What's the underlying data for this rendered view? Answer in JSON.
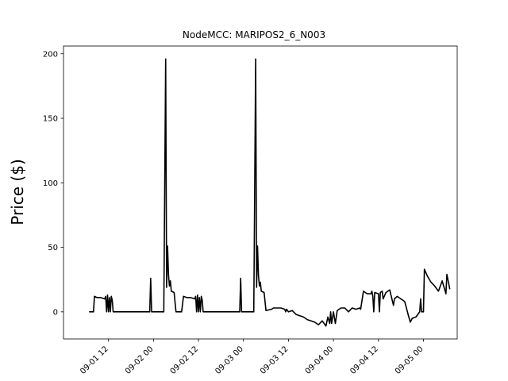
{
  "chart_data": {
    "type": "line",
    "title": "NodeMCC: MARIPOS2_6_N003",
    "xlabel": "",
    "ylabel": "Price ($)",
    "ylim": [
      -21,
      206
    ],
    "xlim": [
      "2022-09-01 00:00",
      "2022-09-05 09:00"
    ],
    "yticks": [
      0,
      50,
      100,
      150,
      200
    ],
    "xticks": [
      {
        "value": "2022-09-01 12:00",
        "label": "09-01 12"
      },
      {
        "value": "2022-09-02 00:00",
        "label": "09-02 00"
      },
      {
        "value": "2022-09-02 12:00",
        "label": "09-02 12"
      },
      {
        "value": "2022-09-03 00:00",
        "label": "09-03 00"
      },
      {
        "value": "2022-09-03 12:00",
        "label": "09-03 12"
      },
      {
        "value": "2022-09-04 00:00",
        "label": "09-04 00"
      },
      {
        "value": "2022-09-04 12:00",
        "label": "09-04 12"
      },
      {
        "value": "2022-09-05 00:00",
        "label": "09-05 00"
      }
    ],
    "grid": false,
    "line_color": "#000000",
    "series": [
      {
        "x": [
          "2022-09-01 07:00",
          "2022-09-01 08:00",
          "2022-09-01 08:15",
          "2022-09-01 09:00",
          "2022-09-01 10:00",
          "2022-09-01 11:00",
          "2022-09-01 11:15",
          "2022-09-01 11:30",
          "2022-09-01 11:45",
          "2022-09-01 12:00",
          "2022-09-01 12:15",
          "2022-09-01 12:30",
          "2022-09-01 12:45",
          "2022-09-01 13:00",
          "2022-09-01 13:15",
          "2022-09-01 14:00",
          "2022-09-01 16:00",
          "2022-09-01 20:00",
          "2022-09-01 23:00",
          "2022-09-01 23:15",
          "2022-09-01 23:30",
          "2022-09-02 01:00",
          "2022-09-02 02:45",
          "2022-09-02 03:15",
          "2022-09-02 03:30",
          "2022-09-02 03:45",
          "2022-09-02 04:00",
          "2022-09-02 04:15",
          "2022-09-02 04:30",
          "2022-09-02 04:45",
          "2022-09-02 05:30",
          "2022-09-02 06:00",
          "2022-09-02 07:30",
          "2022-09-02 08:00",
          "2022-09-02 09:00",
          "2022-09-02 10:00",
          "2022-09-02 11:00",
          "2022-09-02 11:15",
          "2022-09-02 11:30",
          "2022-09-02 11:45",
          "2022-09-02 12:00",
          "2022-09-02 12:15",
          "2022-09-02 12:30",
          "2022-09-02 12:45",
          "2022-09-02 13:00",
          "2022-09-02 13:15",
          "2022-09-02 14:00",
          "2022-09-02 16:00",
          "2022-09-02 20:00",
          "2022-09-02 23:00",
          "2022-09-02 23:15",
          "2022-09-02 23:30",
          "2022-09-03 01:00",
          "2022-09-03 02:45",
          "2022-09-03 03:15",
          "2022-09-03 03:30",
          "2022-09-03 03:45",
          "2022-09-03 04:00",
          "2022-09-03 04:15",
          "2022-09-03 04:30",
          "2022-09-03 04:45",
          "2022-09-03 05:30",
          "2022-09-03 06:00",
          "2022-09-03 07:30",
          "2022-09-03 08:00",
          "2022-09-03 10:00",
          "2022-09-03 11:00",
          "2022-09-03 11:15",
          "2022-09-03 11:30",
          "2022-09-03 12:00",
          "2022-09-03 13:00",
          "2022-09-03 14:00",
          "2022-09-03 15:00",
          "2022-09-03 16:00",
          "2022-09-03 17:00",
          "2022-09-03 18:00",
          "2022-09-03 19:00",
          "2022-09-03 20:00",
          "2022-09-03 21:00",
          "2022-09-03 22:00",
          "2022-09-03 22:30",
          "2022-09-03 23:00",
          "2022-09-03 23:15",
          "2022-09-03 23:30",
          "2022-09-04 00:00",
          "2022-09-04 00:30",
          "2022-09-04 01:00",
          "2022-09-04 02:00",
          "2022-09-04 03:00",
          "2022-09-04 04:00",
          "2022-09-04 05:00",
          "2022-09-04 06:00",
          "2022-09-04 07:00",
          "2022-09-04 07:15",
          "2022-09-04 08:00",
          "2022-09-04 09:00",
          "2022-09-04 10:00",
          "2022-09-04 10:15",
          "2022-09-04 10:30",
          "2022-09-04 10:45",
          "2022-09-04 11:00",
          "2022-09-04 12:00",
          "2022-09-04 12:15",
          "2022-09-04 12:30",
          "2022-09-04 13:00",
          "2022-09-04 13:15",
          "2022-09-04 14:00",
          "2022-09-04 15:00",
          "2022-09-04 16:00",
          "2022-09-04 16:15",
          "2022-09-04 17:00",
          "2022-09-04 18:00",
          "2022-09-04 19:00",
          "2022-09-04 20:00",
          "2022-09-04 20:30",
          "2022-09-04 21:00",
          "2022-09-04 22:00",
          "2022-09-04 23:00",
          "2022-09-04 23:15",
          "2022-09-04 23:30",
          "2022-09-05 00:00",
          "2022-09-05 00:15",
          "2022-09-05 01:00",
          "2022-09-05 02:00",
          "2022-09-05 03:00",
          "2022-09-05 04:00",
          "2022-09-05 05:00",
          "2022-09-05 06:00",
          "2022-09-05 06:15",
          "2022-09-05 07:00"
        ],
        "y": [
          0,
          0,
          12,
          11,
          11,
          10,
          12,
          0,
          13,
          0,
          11,
          0,
          12,
          9,
          0,
          0,
          0,
          0,
          0,
          26,
          0,
          0,
          0,
          196,
          19,
          51,
          29,
          20,
          24,
          16,
          15,
          0,
          0,
          12,
          11,
          11,
          10,
          12,
          0,
          13,
          0,
          11,
          0,
          12,
          9,
          0,
          0,
          0,
          0,
          0,
          26,
          0,
          0,
          0,
          196,
          19,
          51,
          28,
          20,
          23,
          16,
          15,
          1,
          2,
          3,
          3,
          2,
          0,
          2,
          0,
          1,
          -2,
          -3,
          -4,
          -6,
          -7,
          -8,
          -10,
          -7,
          -11,
          -4,
          -9,
          0,
          -9,
          0,
          -9,
          1,
          3,
          3,
          0,
          3,
          2,
          3,
          2,
          16,
          14,
          14,
          16,
          12,
          0,
          15,
          14,
          0,
          15,
          16,
          10,
          15,
          17,
          5,
          10,
          12,
          10,
          8,
          -3,
          -8,
          -5,
          -4,
          0,
          10,
          0,
          0,
          33,
          28,
          23,
          20,
          16,
          24,
          14,
          29,
          18
        ]
      }
    ]
  }
}
